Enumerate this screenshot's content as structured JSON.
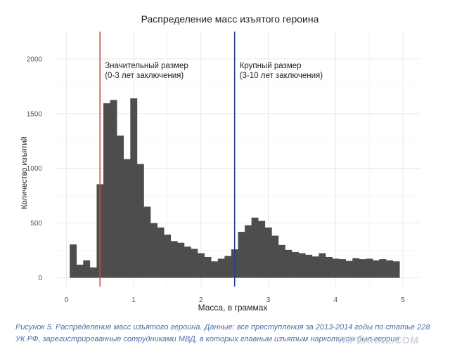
{
  "chart_data": {
    "type": "bar",
    "title": "Распределение масс изъятого героина",
    "xlabel": "Масса, в граммах",
    "ylabel": "Количество изъятий",
    "xlim": [
      -0.15,
      5.25
    ],
    "ylim": [
      -80,
      2250
    ],
    "x_ticks": [
      0,
      1,
      2,
      3,
      4,
      5
    ],
    "y_ticks": [
      0,
      500,
      1000,
      1500,
      2000
    ],
    "grid": true,
    "bin_width": 0.1,
    "bins_start": [
      0.05,
      0.15,
      0.25,
      0.35,
      0.45,
      0.55,
      0.65,
      0.75,
      0.85,
      0.95,
      1.05,
      1.15,
      1.25,
      1.35,
      1.45,
      1.55,
      1.65,
      1.75,
      1.85,
      1.95,
      2.05,
      2.15,
      2.25,
      2.35,
      2.45,
      2.55,
      2.65,
      2.75,
      2.85,
      2.95,
      3.05,
      3.15,
      3.25,
      3.35,
      3.45,
      3.55,
      3.65,
      3.75,
      3.85,
      3.95,
      4.05,
      4.15,
      4.25,
      4.35,
      4.45,
      4.55,
      4.65,
      4.75,
      4.85
    ],
    "values": [
      305,
      120,
      160,
      95,
      855,
      1595,
      1625,
      1300,
      1085,
      1640,
      1040,
      650,
      500,
      460,
      395,
      335,
      320,
      285,
      265,
      225,
      190,
      150,
      175,
      200,
      260,
      420,
      480,
      550,
      520,
      460,
      385,
      300,
      255,
      235,
      225,
      210,
      195,
      225,
      190,
      175,
      170,
      155,
      180,
      170,
      175,
      160,
      170,
      160,
      150
    ],
    "color": "#4d4d4d",
    "reference_lines": [
      {
        "x": 0.5,
        "color": "#c0504d",
        "label_line1": "Значительный размер",
        "label_line2": "(0-3 лет заключения)"
      },
      {
        "x": 2.5,
        "color": "#2e3a8c",
        "label_line1": "Крупный размер",
        "label_line2": "(3-10 лет заключения)"
      }
    ]
  },
  "caption": "Рисунок 5. Распределение масс изъятого героина. Данные: все преступления за 2013-2014 годы по статье 228 УК РФ, зарегистрированные сотрудниками МВД, в которых главным изъятым наркотиком был героин",
  "watermark": "YAPLAKAL.COM"
}
